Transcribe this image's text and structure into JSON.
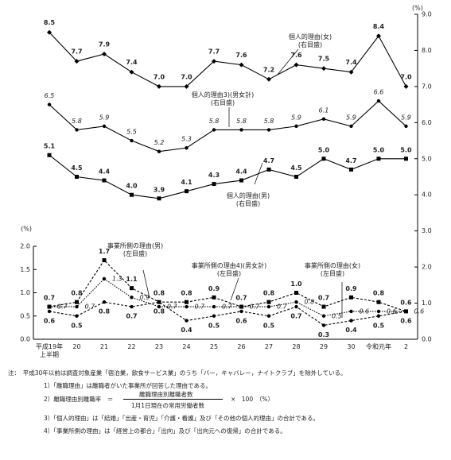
{
  "chart_data": {
    "type": "line",
    "categories": [
      "平成19年\n上半期",
      "20",
      "21",
      "22",
      "23",
      "24",
      "25",
      "26",
      "27",
      "28",
      "29",
      "30",
      "令和元年",
      "2"
    ],
    "ylim": [
      0,
      2
    ],
    "yticks": [
      {
        "value": 0,
        "label": "0.0"
      },
      {
        "value": 0.5,
        "label": "0.5"
      },
      {
        "value": 1,
        "label": "1.0"
      },
      {
        "value": 1.5,
        "label": "1.5"
      },
      {
        "value": 2,
        "label": "2.0"
      }
    ],
    "y2lim": [
      0,
      9
    ],
    "y2ticks": [
      {
        "value": 0,
        "label": "0.0"
      },
      {
        "value": 1,
        "label": "1.0"
      },
      {
        "value": 2,
        "label": "2.0"
      },
      {
        "value": 3,
        "label": "3.0"
      },
      {
        "value": 4,
        "label": "4.0"
      },
      {
        "value": 5,
        "label": "5.0"
      },
      {
        "value": 6,
        "label": "6.0"
      },
      {
        "value": 7,
        "label": "7.0"
      },
      {
        "value": 8,
        "label": "8.0"
      },
      {
        "value": 9,
        "label": "9.0"
      }
    ],
    "ylabel": "(%)",
    "y2label": "(%)",
    "series": [
      {
        "name": "個人的理由(女)",
        "scale_label": "(右目盛)",
        "axis": "y2",
        "color": "#000",
        "dash": "solid",
        "marker": "diamond",
        "values": [
          8.5,
          7.7,
          7.9,
          7.4,
          7.0,
          7.0,
          7.7,
          7.6,
          7.2,
          7.6,
          7.5,
          7.4,
          8.4,
          7.0
        ],
        "value_labels": [
          "8.5",
          "7.7",
          "7.9",
          "7.4",
          "7.0",
          "7.0",
          "7.7",
          "7.6",
          "7.2",
          "7.6",
          "7.5",
          "7.4",
          "8.4",
          "7.0"
        ]
      },
      {
        "name": "個人的理由3)(男女計)",
        "scale_label": "(右目盛)",
        "axis": "y2",
        "color": "#000",
        "dash": "solid",
        "marker": "circle",
        "values": [
          6.5,
          5.8,
          5.9,
          5.5,
          5.2,
          5.3,
          5.8,
          5.8,
          5.8,
          5.9,
          6.1,
          5.9,
          6.6,
          5.9
        ],
        "value_labels": [
          "6.5",
          "5.8",
          "5.9",
          "5.5",
          "5.2",
          "5.3",
          "5.8",
          "5.8",
          "5.8",
          "5.9",
          "6.1",
          "5.9",
          "6.6",
          "5.9"
        ]
      },
      {
        "name": "個人的理由(男)",
        "scale_label": "(右目盛)",
        "axis": "y2",
        "color": "#000",
        "dash": "solid",
        "marker": "square",
        "values": [
          5.1,
          4.5,
          4.4,
          4.0,
          3.9,
          4.1,
          4.3,
          4.4,
          4.7,
          4.5,
          5.0,
          4.7,
          5.0,
          5.0
        ],
        "value_labels": [
          "5.1",
          "4.5",
          "4.4",
          "4.0",
          "3.9",
          "4.1",
          "4.3",
          "4.4",
          "4.7",
          "4.5",
          "5.0",
          "4.7",
          "5.0",
          "5.0"
        ]
      },
      {
        "name": "事業所側の理由(男)",
        "scale_label": "(左目盛)",
        "axis": "y",
        "color": "#000",
        "dash": "dashed",
        "marker": "square",
        "values": [
          0.7,
          0.8,
          1.7,
          1.1,
          0.8,
          0.8,
          0.9,
          0.7,
          0.8,
          1.0,
          0.7,
          0.9,
          0.8,
          0.6
        ],
        "value_labels": [
          "0.7",
          "0.8",
          "1.7",
          "1.1",
          "0.8",
          "0.8",
          "0.9",
          "0.7",
          "0.8",
          "1.0",
          "0.7",
          "0.9",
          "0.8",
          "0.6"
        ]
      },
      {
        "name": "事業所側の理由4)(男女計)",
        "scale_label": "(左目盛)",
        "axis": "y",
        "color": "#000",
        "dash": "dotted",
        "marker": "circle",
        "values": [
          0.7,
          0.7,
          1.3,
          0.9,
          0.7,
          0.7,
          0.7,
          0.7,
          0.7,
          0.8,
          0.5,
          0.6,
          0.6,
          0.6
        ],
        "value_labels": [
          "0.7",
          "0.7",
          "1.3",
          "0.9",
          "0.7",
          "0.7",
          "0.7",
          "0.7",
          "0.7",
          "0.8",
          "0.5",
          "0.6",
          "0.6",
          "0.6"
        ]
      },
      {
        "name": "事業所側の理由(女)",
        "scale_label": "(左目盛)",
        "axis": "y",
        "color": "#000",
        "dash": "dashed",
        "marker": "circle",
        "values": [
          0.6,
          0.5,
          0.8,
          0.7,
          0.8,
          0.4,
          0.5,
          0.6,
          0.5,
          0.7,
          0.3,
          0.4,
          0.5,
          0.6
        ],
        "value_labels": [
          "0.6",
          "0.5",
          "0.8",
          "0.7",
          "0.8",
          "0.4",
          "0.5",
          "0.6",
          "0.5",
          "0.7",
          "0.3",
          "0.4",
          "0.5",
          "0.6"
        ]
      }
    ]
  },
  "notes": {
    "intro": "注：　平成30年以前は調査対象産業「宿泊業，飲食サービス業」のうち「バー，キャバレー，ナイトクラブ」を除外している。",
    "n1": "1）「離職理由」は離職者がいた事業所が回答した理由である。",
    "n2_lhs": "2）離職理由別離職率　＝",
    "n2_num": "離職理由別離職者数",
    "n2_den": "1月1日現在の常用労働者数",
    "n2_rhs": "×　100　（%）",
    "n3": "3）「個人的理由」は「結婚」「出産・育児」「介護・看護」及び「その他の個人的理由」の合計である。",
    "n4": "4）「事業所側の理由」は「経営上の都合」「出向」及び「出向元への復帰」の合計である。"
  }
}
